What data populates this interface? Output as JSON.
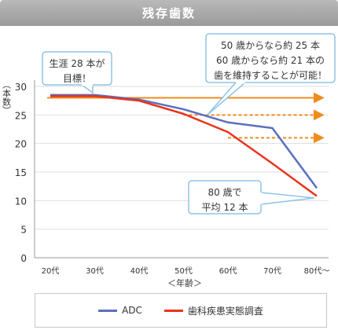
{
  "header": {
    "title": "残存歯数"
  },
  "colors": {
    "adc": "#5b6fc1",
    "survey": "#e8341c",
    "reference": "#f08c1c",
    "callout_border": "#8fc3e6"
  },
  "chart_data": {
    "type": "line",
    "ylabel": "（本数）",
    "xlabel": "＜年齢＞",
    "ylim": [
      0,
      30
    ],
    "yticks": [
      "0",
      "5",
      "10",
      "15",
      "20",
      "25",
      "30"
    ],
    "categories": [
      "20代",
      "30代",
      "40代",
      "50代",
      "60代",
      "70代",
      "80代〜"
    ],
    "grid": true,
    "series": [
      {
        "name": "ADC",
        "values": [
          28.5,
          28.5,
          27.7,
          26.0,
          23.7,
          22.7,
          12.2
        ]
      },
      {
        "name": "歯科疾患実態調査",
        "values": [
          28.3,
          28.3,
          27.5,
          25.2,
          22.0,
          16.5,
          10.8
        ]
      }
    ],
    "annotations": [
      {
        "text_lines": [
          "生涯 28 本が",
          "目標！"
        ]
      },
      {
        "text_lines": [
          "50 歳からなら約 25 本",
          "60 歳からなら約 21 本の",
          "歯を維持することが可能！"
        ]
      },
      {
        "text_lines": [
          "80 歳で",
          "平均 12 本"
        ]
      }
    ],
    "reference_lines": [
      {
        "from": 0,
        "y": 28,
        "style": "solid"
      },
      {
        "from": 3,
        "y": 25,
        "style": "dashed"
      },
      {
        "from": 4,
        "y": 21,
        "style": "dashed"
      }
    ]
  },
  "legend": {
    "position": "bottom"
  }
}
